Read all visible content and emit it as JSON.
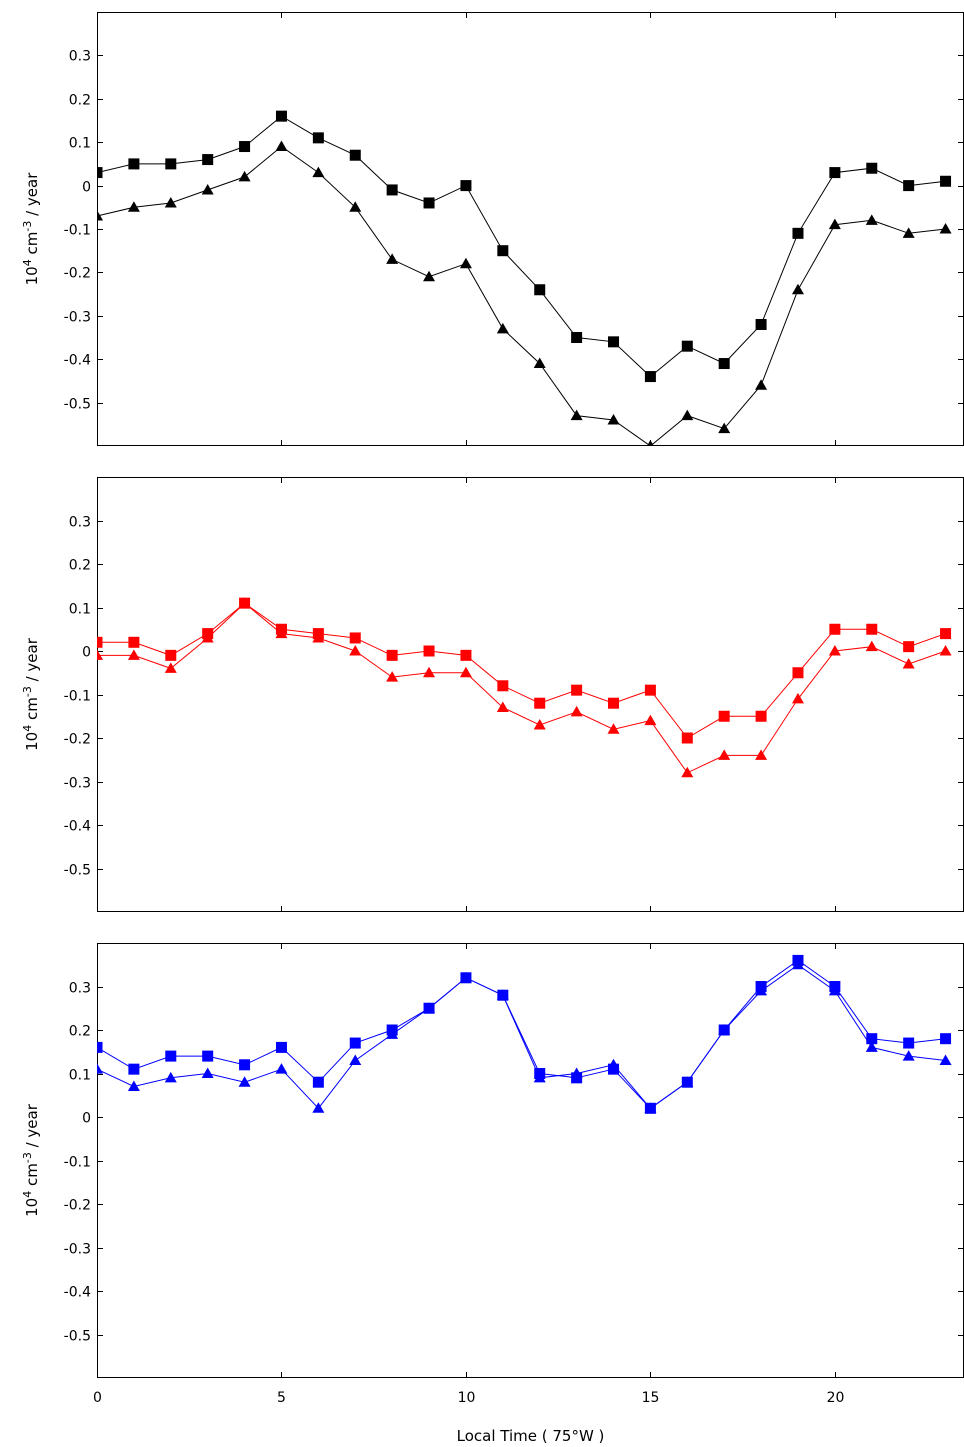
{
  "chart_data": [
    {
      "type": "line",
      "ylabel": "10^4 cm^-3 / year",
      "ylim": [
        -0.6,
        0.4
      ],
      "xlim": [
        0,
        23.5
      ],
      "yticks": [
        0.3,
        0.2,
        0.1,
        0,
        -0.1,
        -0.2,
        -0.3,
        -0.4,
        -0.5
      ],
      "ytick_labels": [
        "0.3",
        "0.2",
        "0.1",
        "0",
        "-0.1",
        "-0.2",
        "-0.3",
        "-0.4",
        "-0.5"
      ],
      "xticks": [
        0,
        5,
        10,
        15,
        20
      ],
      "color": "#000000",
      "series": [
        {
          "marker": "square",
          "x": [
            0,
            1,
            2,
            3,
            4,
            5,
            6,
            7,
            8,
            9,
            10,
            11,
            12,
            13,
            14,
            15,
            16,
            17,
            18,
            19,
            20,
            21,
            22,
            23
          ],
          "values": [
            0.03,
            0.05,
            0.05,
            0.06,
            0.09,
            0.16,
            0.11,
            0.07,
            -0.01,
            -0.04,
            0.0,
            -0.15,
            -0.24,
            -0.35,
            -0.36,
            -0.44,
            -0.37,
            -0.41,
            -0.32,
            -0.11,
            0.03,
            0.04,
            0.0,
            0.01
          ]
        },
        {
          "marker": "triangle",
          "x": [
            0,
            1,
            2,
            3,
            4,
            5,
            6,
            7,
            8,
            9,
            10,
            11,
            12,
            13,
            14,
            15,
            16,
            17,
            18,
            19,
            20,
            21,
            22,
            23
          ],
          "values": [
            -0.07,
            -0.05,
            -0.04,
            -0.01,
            0.02,
            0.09,
            0.03,
            -0.05,
            -0.17,
            -0.21,
            -0.18,
            -0.33,
            -0.41,
            -0.53,
            -0.54,
            -0.6,
            -0.53,
            -0.56,
            -0.46,
            -0.24,
            -0.09,
            -0.08,
            -0.11,
            -0.1
          ]
        }
      ]
    },
    {
      "type": "line",
      "ylabel": "10^4 cm^-3 / year",
      "ylim": [
        -0.6,
        0.4
      ],
      "xlim": [
        0,
        23.5
      ],
      "yticks": [
        0.3,
        0.2,
        0.1,
        0,
        -0.1,
        -0.2,
        -0.3,
        -0.4,
        -0.5
      ],
      "ytick_labels": [
        "0.3",
        "0.2",
        "0.1",
        "0",
        "-0.1",
        "-0.2",
        "-0.3",
        "-0.4",
        "-0.5"
      ],
      "xticks": [
        0,
        5,
        10,
        15,
        20
      ],
      "color": "#ff0000",
      "series": [
        {
          "marker": "square",
          "x": [
            0,
            1,
            2,
            3,
            4,
            5,
            6,
            7,
            8,
            9,
            10,
            11,
            12,
            13,
            14,
            15,
            16,
            17,
            18,
            19,
            20,
            21,
            22,
            23
          ],
          "values": [
            0.02,
            0.02,
            -0.01,
            0.04,
            0.11,
            0.05,
            0.04,
            0.03,
            -0.01,
            0.0,
            -0.01,
            -0.08,
            -0.12,
            -0.09,
            -0.12,
            -0.09,
            -0.2,
            -0.15,
            -0.15,
            -0.05,
            0.05,
            0.05,
            0.01,
            0.04
          ]
        },
        {
          "marker": "triangle",
          "x": [
            0,
            1,
            2,
            3,
            4,
            5,
            6,
            7,
            8,
            9,
            10,
            11,
            12,
            13,
            14,
            15,
            16,
            17,
            18,
            19,
            20,
            21,
            22,
            23
          ],
          "values": [
            -0.01,
            -0.01,
            -0.04,
            0.03,
            0.11,
            0.04,
            0.03,
            0.0,
            -0.06,
            -0.05,
            -0.05,
            -0.13,
            -0.17,
            -0.14,
            -0.18,
            -0.16,
            -0.28,
            -0.24,
            -0.24,
            -0.11,
            0.0,
            0.01,
            -0.03,
            0.0
          ]
        }
      ]
    },
    {
      "type": "line",
      "ylabel": "10^4 cm^-3 / year",
      "xlabel": "Local Time ( 75°W )",
      "ylim": [
        -0.6,
        0.4
      ],
      "xlim": [
        0,
        23.5
      ],
      "yticks": [
        0.3,
        0.2,
        0.1,
        0,
        -0.1,
        -0.2,
        -0.3,
        -0.4,
        -0.5
      ],
      "ytick_labels": [
        "0.3",
        "0.2",
        "0.1",
        "0",
        "-0.1",
        "-0.2",
        "-0.3",
        "-0.4",
        "-0.5"
      ],
      "xticks": [
        0,
        5,
        10,
        15,
        20
      ],
      "xtick_labels": [
        "0",
        "5",
        "10",
        "15",
        "20"
      ],
      "color": "#0000ff",
      "series": [
        {
          "marker": "square",
          "x": [
            0,
            1,
            2,
            3,
            4,
            5,
            6,
            7,
            8,
            9,
            10,
            11,
            12,
            13,
            14,
            15,
            16,
            17,
            18,
            19,
            20,
            21,
            22,
            23
          ],
          "values": [
            0.16,
            0.11,
            0.14,
            0.14,
            0.12,
            0.16,
            0.08,
            0.17,
            0.2,
            0.25,
            0.32,
            0.28,
            0.1,
            0.09,
            0.11,
            0.02,
            0.08,
            0.2,
            0.3,
            0.36,
            0.3,
            0.18,
            0.17,
            0.18
          ]
        },
        {
          "marker": "triangle",
          "x": [
            0,
            1,
            2,
            3,
            4,
            5,
            6,
            7,
            8,
            9,
            10,
            11,
            12,
            13,
            14,
            15,
            16,
            17,
            18,
            19,
            20,
            21,
            22,
            23
          ],
          "values": [
            0.11,
            0.07,
            0.09,
            0.1,
            0.08,
            0.11,
            0.02,
            0.13,
            0.19,
            0.25,
            0.32,
            0.28,
            0.09,
            0.1,
            0.12,
            0.02,
            0.08,
            0.2,
            0.29,
            0.35,
            0.29,
            0.16,
            0.14,
            0.13
          ]
        }
      ]
    }
  ]
}
